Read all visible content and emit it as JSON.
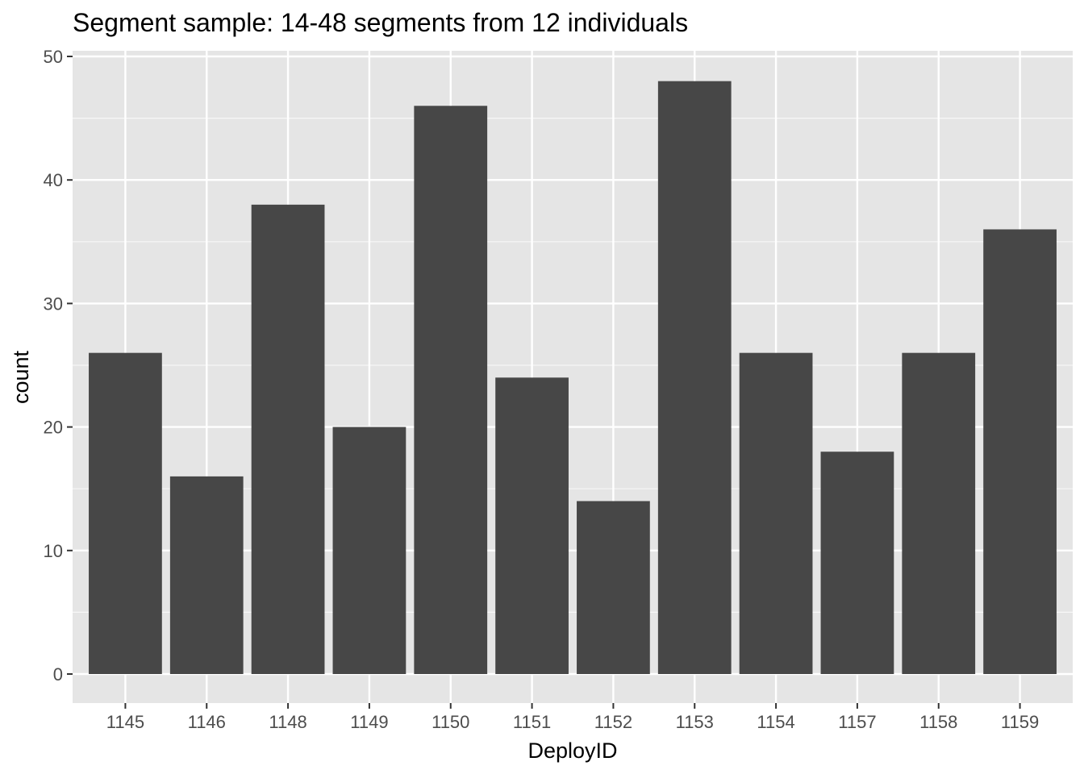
{
  "chart_data": {
    "type": "bar",
    "title": "Segment sample: 14-48 segments from 12 individuals",
    "xlabel": "DeployID",
    "ylabel": "count",
    "categories": [
      "1145",
      "1146",
      "1148",
      "1149",
      "1150",
      "1151",
      "1152",
      "1153",
      "1154",
      "1157",
      "1158",
      "1159"
    ],
    "values": [
      26,
      16,
      38,
      20,
      46,
      24,
      14,
      48,
      26,
      18,
      26,
      36
    ],
    "ylim": [
      0,
      50
    ],
    "yticks": [
      0,
      10,
      20,
      30,
      40,
      50
    ],
    "grid": true,
    "legend": "none",
    "colors": {
      "bar": "#474747",
      "panel_background": "#e5e5e5",
      "grid": "#ffffff",
      "tick_text": "#4d4d4d",
      "tick_mark": "#333333"
    }
  }
}
